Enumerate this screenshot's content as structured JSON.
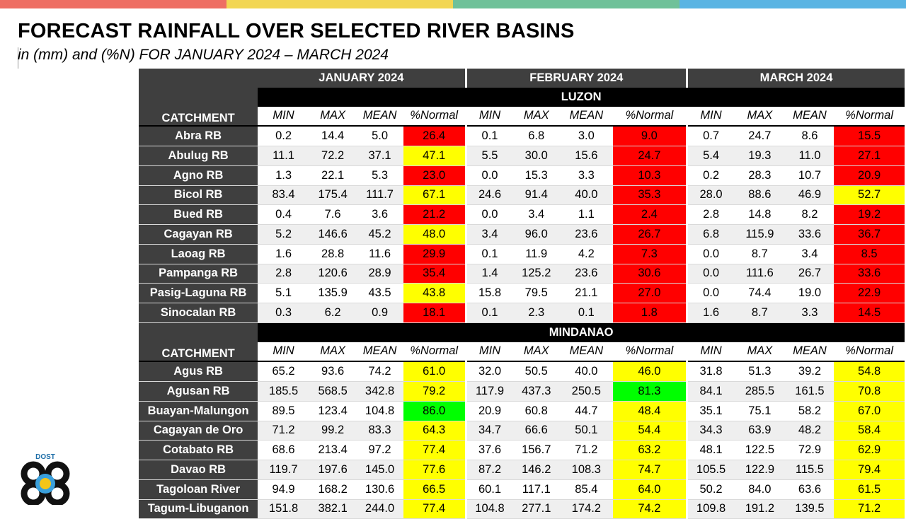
{
  "colors": {
    "band": [
      "#ee6e63",
      "#f2d653",
      "#6fc199",
      "#5ab4e3"
    ],
    "red": "#ff0000",
    "yellow": "#ffff00",
    "green": "#00ff00",
    "header_dark": "#3f3f3f"
  },
  "title": "FORECAST RAINFALL OVER SELECTED RIVER BASINS",
  "subtitle": "in (mm) and (%N) FOR  JANUARY 2024 – MARCH 2024",
  "months": [
    "JANUARY 2024",
    "FEBRUARY 2024",
    "MARCH 2024"
  ],
  "column_labels": [
    "MIN",
    "MAX",
    "MEAN",
    "%Normal"
  ],
  "catchment_label": "CATCHMENT",
  "logo_text": "DOST",
  "regions": [
    {
      "name": "LUZON",
      "rows": [
        {
          "name": "Abra RB",
          "values": [
            "0.2",
            "14.4",
            "5.0",
            "26.4",
            "0.1",
            "6.8",
            "3.0",
            "9.0",
            "0.7",
            "24.7",
            "8.6",
            "15.5"
          ],
          "status": [
            "red",
            "red",
            "red"
          ]
        },
        {
          "name": "Abulug RB",
          "values": [
            "11.1",
            "72.2",
            "37.1",
            "47.1",
            "5.5",
            "30.0",
            "15.6",
            "24.7",
            "5.4",
            "19.3",
            "11.0",
            "27.1"
          ],
          "status": [
            "yellow",
            "red",
            "red"
          ]
        },
        {
          "name": "Agno RB",
          "values": [
            "1.3",
            "22.1",
            "5.3",
            "23.0",
            "0.0",
            "15.3",
            "3.3",
            "10.3",
            "0.2",
            "28.3",
            "10.7",
            "20.9"
          ],
          "status": [
            "red",
            "red",
            "red"
          ]
        },
        {
          "name": "Bicol RB",
          "values": [
            "83.4",
            "175.4",
            "111.7",
            "67.1",
            "24.6",
            "91.4",
            "40.0",
            "35.3",
            "28.0",
            "88.6",
            "46.9",
            "52.7"
          ],
          "status": [
            "yellow",
            "red",
            "yellow"
          ]
        },
        {
          "name": "Bued RB",
          "values": [
            "0.4",
            "7.6",
            "3.6",
            "21.2",
            "0.0",
            "3.4",
            "1.1",
            "2.4",
            "2.8",
            "14.8",
            "8.2",
            "19.2"
          ],
          "status": [
            "red",
            "red",
            "red"
          ]
        },
        {
          "name": "Cagayan RB",
          "values": [
            "5.2",
            "146.6",
            "45.2",
            "48.0",
            "3.4",
            "96.0",
            "23.6",
            "26.7",
            "6.8",
            "115.9",
            "33.6",
            "36.7"
          ],
          "status": [
            "yellow",
            "red",
            "red"
          ]
        },
        {
          "name": "Laoag RB",
          "values": [
            "1.6",
            "28.8",
            "11.6",
            "29.9",
            "0.1",
            "11.9",
            "4.2",
            "7.3",
            "0.0",
            "8.7",
            "3.4",
            "8.5"
          ],
          "status": [
            "red",
            "red",
            "red"
          ]
        },
        {
          "name": "Pampanga RB",
          "values": [
            "2.8",
            "120.6",
            "28.9",
            "35.4",
            "1.4",
            "125.2",
            "23.6",
            "30.6",
            "0.0",
            "111.6",
            "26.7",
            "33.6"
          ],
          "status": [
            "red",
            "red",
            "red"
          ]
        },
        {
          "name": "Pasig-Laguna RB",
          "values": [
            "5.1",
            "135.9",
            "43.5",
            "43.8",
            "15.8",
            "79.5",
            "21.1",
            "27.0",
            "0.0",
            "74.4",
            "19.0",
            "22.9"
          ],
          "status": [
            "yellow",
            "red",
            "red"
          ]
        },
        {
          "name": "Sinocalan RB",
          "values": [
            "0.3",
            "6.2",
            "0.9",
            "18.1",
            "0.1",
            "2.3",
            "0.1",
            "1.8",
            "1.6",
            "8.7",
            "3.3",
            "14.5"
          ],
          "status": [
            "red",
            "red",
            "red"
          ]
        }
      ]
    },
    {
      "name": "MINDANAO",
      "rows": [
        {
          "name": "Agus RB",
          "values": [
            "65.2",
            "93.6",
            "74.2",
            "61.0",
            "32.0",
            "50.5",
            "40.0",
            "46.0",
            "31.8",
            "51.3",
            "39.2",
            "54.8"
          ],
          "status": [
            "yellow",
            "yellow",
            "yellow"
          ]
        },
        {
          "name": "Agusan RB",
          "values": [
            "185.5",
            "568.5",
            "342.8",
            "79.2",
            "117.9",
            "437.3",
            "250.5",
            "81.3",
            "84.1",
            "285.5",
            "161.5",
            "70.8"
          ],
          "status": [
            "yellow",
            "green",
            "yellow"
          ]
        },
        {
          "name": "Buayan-Malungon",
          "values": [
            "89.5",
            "123.4",
            "104.8",
            "86.0",
            "20.9",
            "60.8",
            "44.7",
            "48.4",
            "35.1",
            "75.1",
            "58.2",
            "67.0"
          ],
          "status": [
            "green",
            "yellow",
            "yellow"
          ]
        },
        {
          "name": "Cagayan de Oro",
          "values": [
            "71.2",
            "99.2",
            "83.3",
            "64.3",
            "34.7",
            "66.6",
            "50.1",
            "54.4",
            "34.3",
            "63.9",
            "48.2",
            "58.4"
          ],
          "status": [
            "yellow",
            "yellow",
            "yellow"
          ]
        },
        {
          "name": "Cotabato RB",
          "values": [
            "68.6",
            "213.4",
            "97.2",
            "77.4",
            "37.6",
            "156.7",
            "71.2",
            "63.2",
            "48.1",
            "122.5",
            "72.9",
            "62.9"
          ],
          "status": [
            "yellow",
            "yellow",
            "yellow"
          ]
        },
        {
          "name": "Davao RB",
          "values": [
            "119.7",
            "197.6",
            "145.0",
            "77.6",
            "87.2",
            "146.2",
            "108.3",
            "74.7",
            "105.5",
            "122.9",
            "115.5",
            "79.4"
          ],
          "status": [
            "yellow",
            "yellow",
            "yellow"
          ]
        },
        {
          "name": "Tagoloan River",
          "values": [
            "94.9",
            "168.2",
            "130.6",
            "66.5",
            "60.1",
            "117.1",
            "85.4",
            "64.0",
            "50.2",
            "84.0",
            "63.6",
            "61.5"
          ],
          "status": [
            "yellow",
            "yellow",
            "yellow"
          ]
        },
        {
          "name": "Tagum-Libuganon",
          "values": [
            "151.8",
            "382.1",
            "244.0",
            "77.4",
            "104.8",
            "277.1",
            "174.2",
            "74.2",
            "109.8",
            "191.2",
            "139.5",
            "71.2"
          ],
          "status": [
            "yellow",
            "yellow",
            "yellow"
          ]
        }
      ]
    }
  ]
}
